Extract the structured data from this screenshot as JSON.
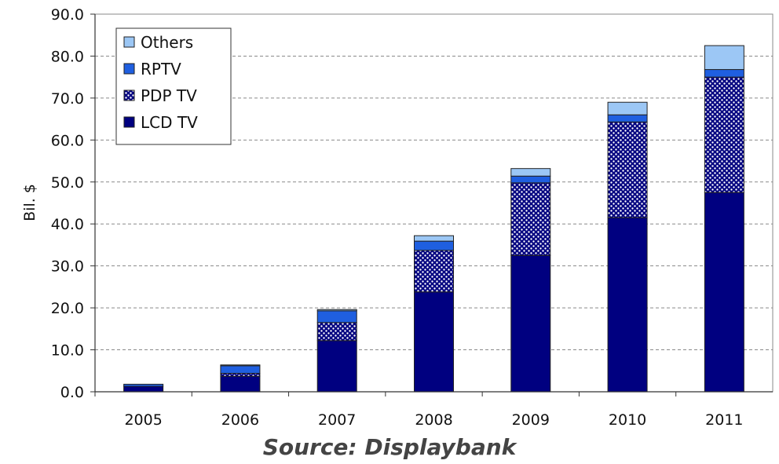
{
  "source_note": "Source: Displaybank",
  "chart_data": {
    "type": "bar",
    "stacked": true,
    "categories": [
      "2005",
      "2006",
      "2007",
      "2008",
      "2009",
      "2010",
      "2011"
    ],
    "series": [
      {
        "name": "LCD TV",
        "color": "#000080",
        "values": [
          1.3,
          3.7,
          12.2,
          23.8,
          32.5,
          41.5,
          47.5
        ]
      },
      {
        "name": "PDP TV",
        "color": "#a9a9d4",
        "values": [
          0.0,
          0.7,
          4.3,
          9.9,
          17.3,
          22.8,
          27.5
        ]
      },
      {
        "name": "RPTV",
        "color": "#1f5fe0",
        "values": [
          0.5,
          1.8,
          2.8,
          2.2,
          1.6,
          1.7,
          1.8
        ]
      },
      {
        "name": "Others",
        "color": "#9cc7f5",
        "values": [
          0.0,
          0.2,
          0.3,
          1.3,
          1.8,
          3.0,
          5.7
        ]
      }
    ],
    "ylabel": "Bil. $",
    "xlabel": "",
    "ylim": [
      0,
      90
    ],
    "yticks": [
      "0.0",
      "10.0",
      "20.0",
      "30.0",
      "40.0",
      "50.0",
      "60.0",
      "70.0",
      "80.0",
      "90.0"
    ],
    "grid": true,
    "legend": {
      "placement": "top-left",
      "order": [
        "Others",
        "RPTV",
        "PDP TV",
        "LCD TV"
      ]
    }
  }
}
